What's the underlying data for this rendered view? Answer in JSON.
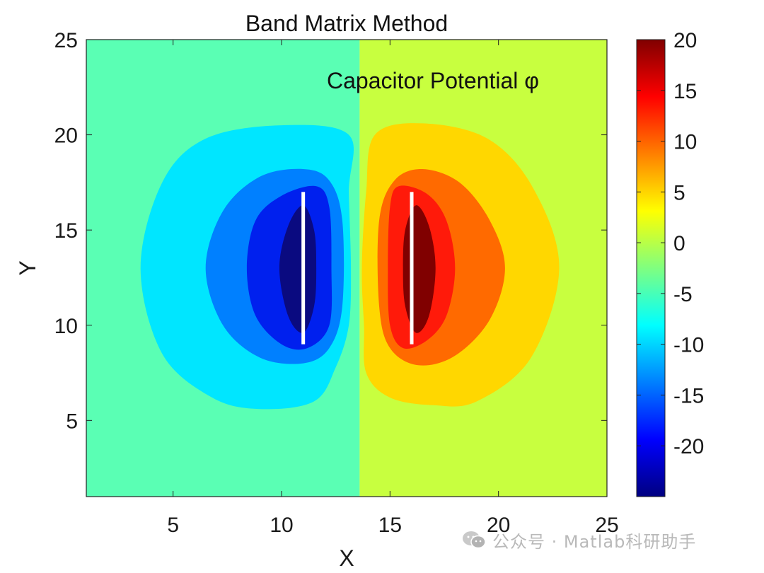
{
  "chart_data": {
    "type": "contourf",
    "title": "Band Matrix Method",
    "xlabel": "X",
    "ylabel": "Y",
    "annotation": "Capacitor Potential φ",
    "xlim": [
      1,
      25
    ],
    "ylim": [
      1,
      25
    ],
    "xticks": [
      5,
      10,
      15,
      20,
      25
    ],
    "yticks": [
      5,
      10,
      15,
      20,
      25
    ],
    "colormap": "jet",
    "clim": [
      -25,
      20
    ],
    "colorbar_ticks": [
      20,
      15,
      10,
      5,
      0,
      -5,
      -10,
      -15,
      -20
    ],
    "background_levels": {
      "left": {
        "value": -3,
        "color": "#5affb4"
      },
      "right": {
        "value": 3,
        "color": "#c8ff3f"
      }
    },
    "contour_levels": [
      {
        "side": "negative",
        "value": -8,
        "color": "#00e6ff"
      },
      {
        "side": "negative",
        "value": -14,
        "color": "#0080ff"
      },
      {
        "side": "negative",
        "value": -19,
        "color": "#0020ee"
      },
      {
        "side": "negative",
        "value": -24,
        "color": "#0a0a80"
      },
      {
        "side": "positive",
        "value": 8,
        "color": "#ffd700"
      },
      {
        "side": "positive",
        "value": 12,
        "color": "#ff6a00"
      },
      {
        "side": "positive",
        "value": 16,
        "color": "#ff1a0a"
      },
      {
        "side": "positive",
        "value": 20,
        "color": "#800000"
      }
    ],
    "plates": [
      {
        "name": "negative plate",
        "x": 11,
        "y": [
          9,
          17
        ],
        "color": "#ffffff"
      },
      {
        "name": "positive plate",
        "x": 16,
        "y": [
          9,
          17
        ],
        "color": "#ffffff"
      }
    ],
    "grid": false,
    "legend": "colorbar-right"
  },
  "watermark": {
    "text": "公众号 · Matlab科研助手",
    "icon": "wechat-icon"
  }
}
